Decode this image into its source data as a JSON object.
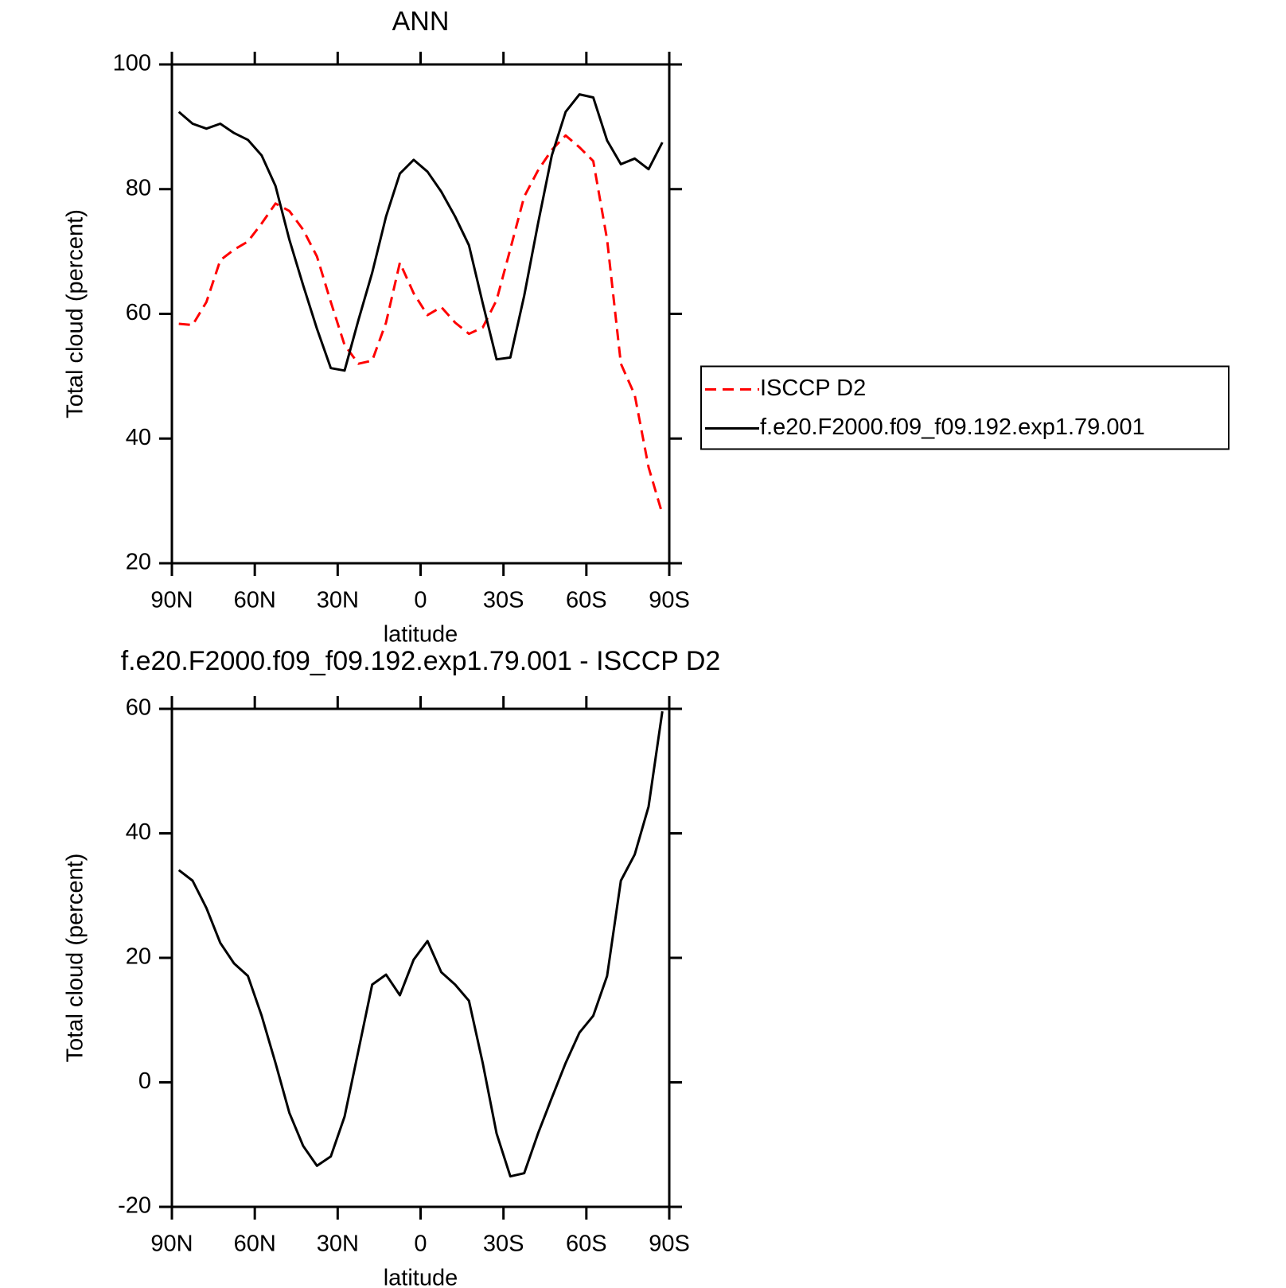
{
  "chart_data": [
    {
      "type": "line",
      "title": "ANN",
      "xlabel": "latitude",
      "ylabel": "Total cloud (percent)",
      "x": [
        87.5,
        82.5,
        77.5,
        72.5,
        67.5,
        62.5,
        57.5,
        52.5,
        47.5,
        42.5,
        37.5,
        32.5,
        27.5,
        22.5,
        17.5,
        12.5,
        7.5,
        2.5,
        -2.5,
        -7.5,
        -12.5,
        -17.5,
        -22.5,
        -27.5,
        -32.5,
        -37.5,
        -42.5,
        -47.5,
        -52.5,
        -57.5,
        -62.5,
        -67.5,
        -72.5,
        -77.5,
        -82.5,
        -87.5
      ],
      "series": [
        {
          "name": "ISCCP D2",
          "color": "#ff0000",
          "dashed": true,
          "values": [
            58.4,
            58.2,
            61.9,
            68.6,
            70.3,
            71.6,
            74.5,
            77.7,
            76.5,
            73.5,
            69.2,
            61.9,
            55,
            52,
            52.5,
            58.6,
            68.2,
            63.3,
            59.8,
            61.1,
            58.6,
            56.8,
            57.8,
            62.2,
            70.4,
            78.8,
            83,
            86.3,
            88.6,
            86.7,
            84.5,
            71.9,
            52,
            47,
            35.4,
            27.9
          ]
        },
        {
          "name": "f.e20.F2000.f09_f09.192.exp1.79.001",
          "color": "#000000",
          "dashed": false,
          "values": [
            92.4,
            90.5,
            89.7,
            90.5,
            89,
            87.9,
            85.4,
            80.5,
            71.9,
            64.6,
            57.6,
            51.3,
            50.9,
            59,
            66.6,
            75.6,
            82.5,
            84.7,
            82.8,
            79.6,
            75.6,
            71,
            61.7,
            52.7,
            53,
            62.9,
            74.5,
            85.4,
            92.4,
            95.2,
            94.7,
            87.8,
            84,
            84.9,
            83.2,
            87.5
          ]
        }
      ],
      "xlim": [
        90,
        -90
      ],
      "xticks": [
        {
          "value": 90,
          "label": "90N"
        },
        {
          "value": 60,
          "label": "60N"
        },
        {
          "value": 30,
          "label": "30N"
        },
        0,
        {
          "value": -30,
          "label": "30S"
        },
        {
          "value": -60,
          "label": "60S"
        },
        {
          "value": -90,
          "label": "90S"
        }
      ],
      "ylim": [
        20,
        100
      ],
      "yticks": [
        20,
        40,
        60,
        80,
        100
      ],
      "legend": "outside-right"
    },
    {
      "type": "line",
      "title": "f.e20.F2000.f09_f09.192.exp1.79.001 - ISCCP D2",
      "xlabel": "latitude",
      "ylabel": "Total cloud (percent)",
      "x": [
        87.5,
        82.5,
        77.5,
        72.5,
        67.5,
        62.5,
        57.5,
        52.5,
        47.5,
        42.5,
        37.5,
        32.5,
        27.5,
        22.5,
        17.5,
        12.5,
        7.5,
        2.5,
        -2.5,
        -7.5,
        -12.5,
        -17.5,
        -22.5,
        -27.5,
        -32.5,
        -37.5,
        -42.5,
        -47.5,
        -52.5,
        -57.5,
        -62.5,
        -67.5,
        -72.5,
        -77.5,
        -82.5,
        -87.5
      ],
      "series": [
        {
          "color": "#000000",
          "dashed": false,
          "values": [
            34.1,
            32.4,
            28,
            22.4,
            19.1,
            17.1,
            10.7,
            3.1,
            -4.9,
            -10.2,
            -13.4,
            -11.9,
            -5.5,
            5.1,
            15.7,
            17.3,
            14,
            19.7,
            22.7,
            17.7,
            15.7,
            13.1,
            3.1,
            -8.2,
            -15.1,
            -14.6,
            -8.2,
            -2.5,
            3.1,
            8,
            10.7,
            17.1,
            32.4,
            36.6,
            44.3,
            59.6
          ]
        }
      ],
      "xlim": [
        90,
        -90
      ],
      "xticks": [
        {
          "value": 90,
          "label": "90N"
        },
        {
          "value": 60,
          "label": "60N"
        },
        {
          "value": 30,
          "label": "30N"
        },
        0,
        {
          "value": -30,
          "label": "30S"
        },
        {
          "value": -60,
          "label": "60S"
        },
        {
          "value": -90,
          "label": "90S"
        }
      ],
      "ylim": [
        -20,
        60
      ],
      "yticks": [
        -20,
        0,
        20,
        40,
        60
      ]
    }
  ]
}
